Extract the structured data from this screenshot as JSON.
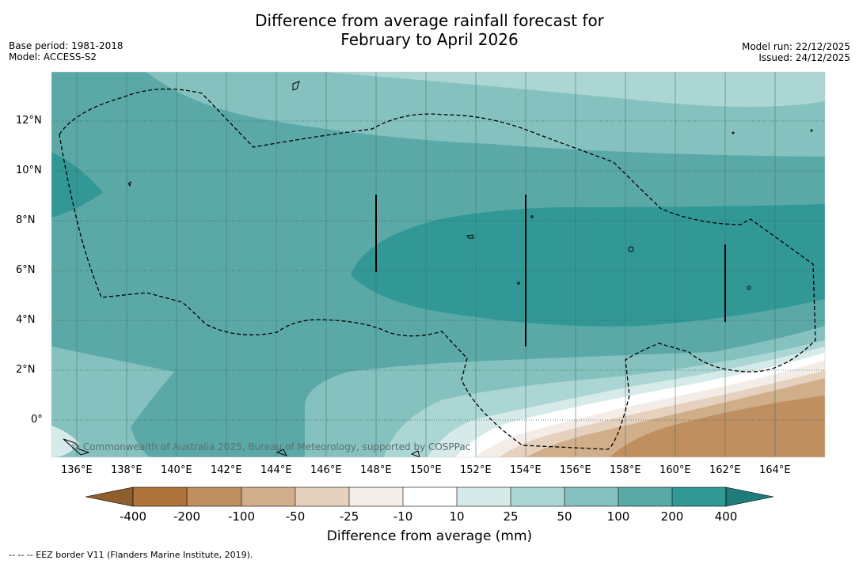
{
  "title": {
    "line1": "Difference from average rainfall forecast for",
    "line2": "February to April 2026"
  },
  "meta_left": {
    "base_period": "Base period: 1981-2018",
    "model": "Model: ACCESS-S2"
  },
  "meta_right": {
    "model_run": "Model run: 22/12/2025",
    "issued": "Issued: 24/12/2025"
  },
  "map": {
    "longitude_labels": [
      "136°E",
      "138°E",
      "140°E",
      "142°E",
      "144°E",
      "146°E",
      "148°E",
      "150°E",
      "152°E",
      "154°E",
      "156°E",
      "158°E",
      "160°E",
      "162°E",
      "164°E"
    ],
    "latitude_labels": [
      "12°N",
      "10°N",
      "8°N",
      "6°N",
      "4°N",
      "2°N",
      "0°"
    ],
    "copyright": "© Commonwealth of Australia 2025, Bureau of Meteorology, supported by COSPPac"
  },
  "legend": {
    "tick_labels": [
      "-400",
      "-200",
      "-100",
      "-50",
      "-25",
      "-10",
      "10",
      "25",
      "50",
      "100",
      "200",
      "400"
    ],
    "colors": [
      "#ad733a",
      "#bf8f60",
      "#d1ae8a",
      "#e5d1bd",
      "#f4ede7",
      "#ffffff",
      "#d6ebe9",
      "#abd6d3",
      "#85c2bf",
      "#5ba9a7",
      "#329896",
      "#1f7c7b",
      "#8f5e2c"
    ],
    "title": "Difference from average (mm)"
  },
  "footer": "--  --  -- EEZ border V11 (Flanders Marine Institute, 2019)."
}
